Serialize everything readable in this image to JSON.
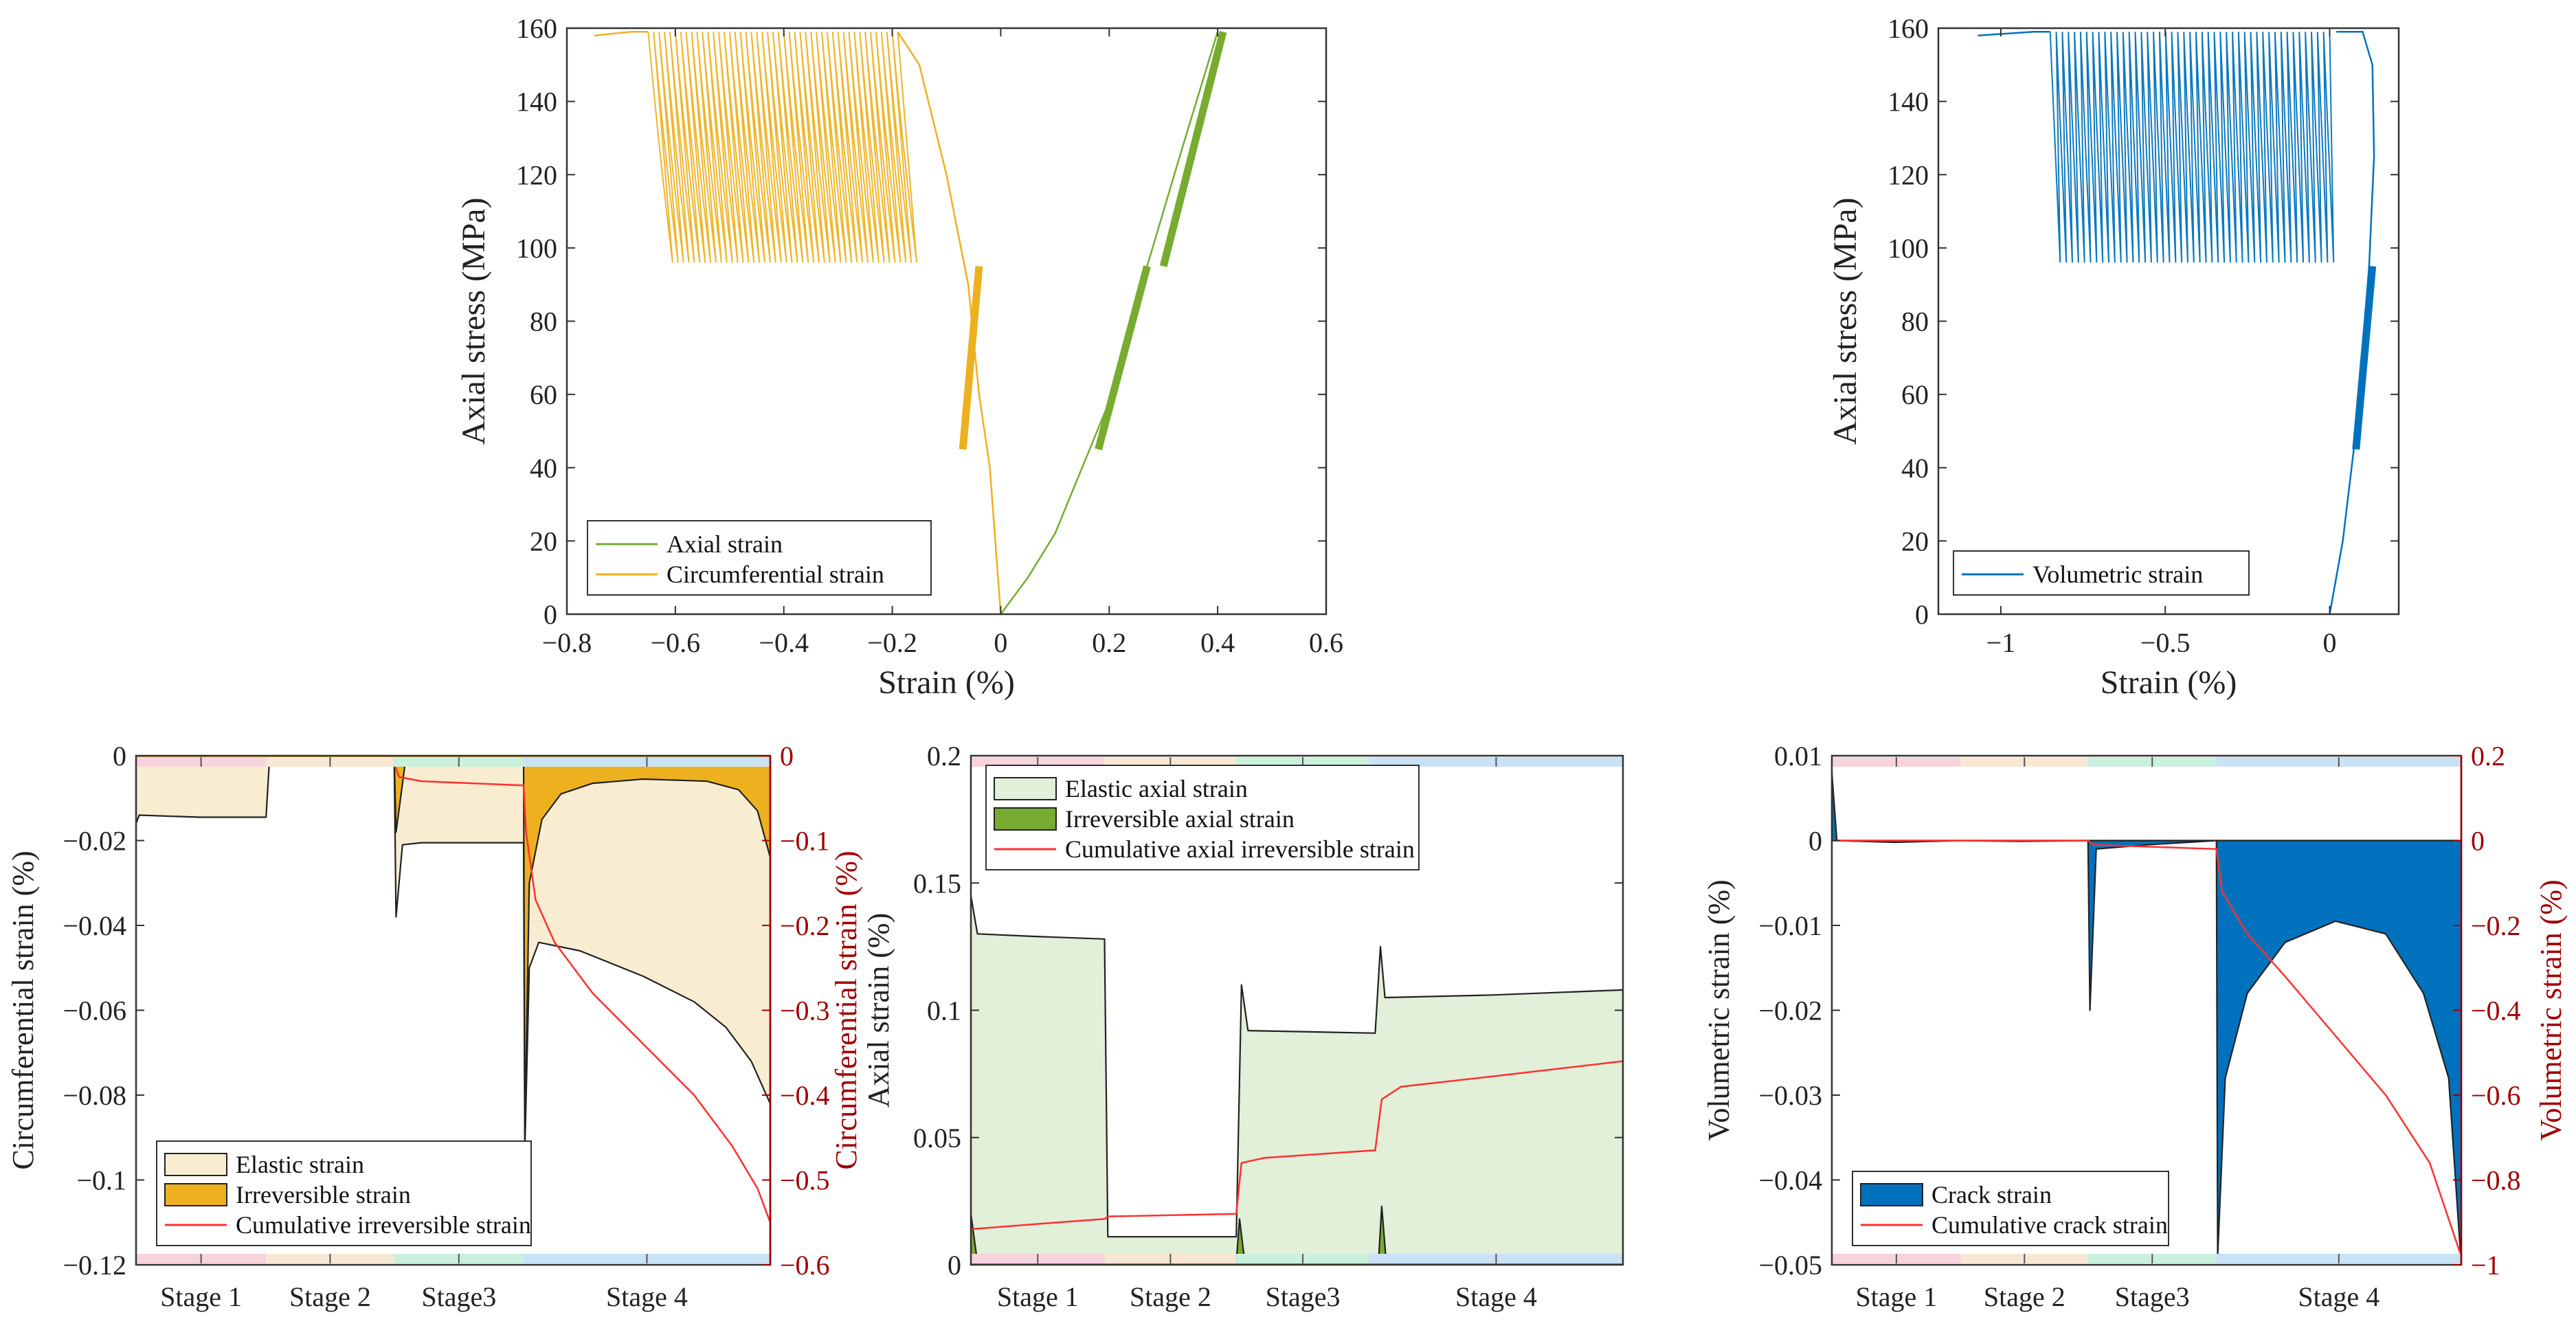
{
  "colors": {
    "axial": "#77ac30",
    "circ": "#edb120",
    "vol": "#0072bd",
    "red": "#ff3030",
    "darkred": "#a00000",
    "elastic_circ": "#f9edd1",
    "elastic_axial": "#e2efd9",
    "stages": [
      "#f8d3dc",
      "#f8e8d3",
      "#c9f1de",
      "#c9e2f6"
    ]
  },
  "stage_labels": [
    "Stage 1",
    "Stage 2",
    "Stage3",
    "Stage 4"
  ],
  "stage_bounds": [
    0,
    0.205,
    0.407,
    0.611,
    1.0
  ],
  "chart_data": [
    {
      "id": "stress-strain",
      "type": "line",
      "xlabel": "Strain (%)",
      "ylabel": "Axial stress (MPa)",
      "xlim": [
        -0.8,
        0.6
      ],
      "ylim": [
        0,
        160
      ],
      "xticks": [
        -0.8,
        -0.6,
        -0.4,
        -0.2,
        0,
        0.2,
        0.4,
        0.6
      ],
      "xticklabels": [
        "−0.8",
        "−0.6",
        "−0.4",
        "−0.2",
        "0",
        "0.2",
        "0.4",
        "0.6"
      ],
      "yticks": [
        0,
        20,
        40,
        60,
        80,
        100,
        120,
        140,
        160
      ],
      "yticklabels": [
        "0",
        "20",
        "40",
        "60",
        "80",
        "100",
        "120",
        "140",
        "160"
      ],
      "legend": "bottom-left",
      "series": [
        {
          "name": "Axial strain",
          "color": "axial",
          "points": [
            [
              0,
              0
            ],
            [
              0.05,
              10
            ],
            [
              0.1,
              22
            ],
            [
              0.15,
              40
            ],
            [
              0.2,
              58
            ],
            [
              0.27,
              95
            ],
            [
              0.33,
              125
            ],
            [
              0.4,
              159
            ]
          ],
          "bands": [
            {
              "x": [
                0.18,
                0.27
              ],
              "y": [
                45,
                95
              ]
            },
            {
              "x": [
                0.3,
                0.41
              ],
              "y": [
                95,
                159
              ]
            }
          ]
        },
        {
          "name": "Circumferential strain",
          "color": "circ",
          "points": [
            [
              0,
              0
            ],
            [
              -0.01,
              20
            ],
            [
              -0.02,
              40
            ],
            [
              -0.04,
              60
            ],
            [
              -0.06,
              90
            ],
            [
              -0.1,
              120
            ],
            [
              -0.15,
              150
            ],
            [
              -0.19,
              159
            ]
          ],
          "bands": [
            {
              "x": [
                -0.07,
                -0.04
              ],
              "y": [
                45,
                95
              ]
            }
          ],
          "cycles": {
            "count": 46,
            "x_start": -0.19,
            "x_end": -0.65,
            "y": [
              96,
              159
            ]
          },
          "tail": [
            [
              -0.65,
              159
            ],
            [
              -0.68,
              159
            ],
            [
              -0.75,
              158
            ]
          ]
        }
      ]
    },
    {
      "id": "volumetric-stress-strain",
      "type": "line",
      "xlabel": "Strain (%)",
      "ylabel": "Axial stress (MPa)",
      "xlim": [
        -1.19,
        0.21
      ],
      "ylim": [
        0,
        160
      ],
      "xticks": [
        -1,
        -0.5,
        0
      ],
      "xticklabels": [
        "−1",
        "−0.5",
        "0"
      ],
      "yticks": [
        0,
        20,
        40,
        60,
        80,
        100,
        120,
        140,
        160
      ],
      "yticklabels": [
        "0",
        "20",
        "40",
        "60",
        "80",
        "100",
        "120",
        "140",
        "160"
      ],
      "legend": "bottom-left",
      "series": [
        {
          "name": "Volumetric strain",
          "color": "vol",
          "points": [
            [
              0,
              0
            ],
            [
              0.04,
              20
            ],
            [
              0.08,
              50
            ],
            [
              0.12,
              95
            ],
            [
              0.135,
              125
            ],
            [
              0.13,
              150
            ],
            [
              0.1,
              159
            ],
            [
              0.02,
              159
            ]
          ],
          "bands": [
            {
              "x": [
                0.08,
                0.13
              ],
              "y": [
                45,
                95
              ]
            }
          ],
          "cycles": {
            "count": 46,
            "x_start": 0.0,
            "x_end": -0.85,
            "y": [
              96,
              159
            ]
          },
          "tail": [
            [
              -0.85,
              159
            ],
            [
              -0.9,
              159
            ],
            [
              -1.07,
              158
            ]
          ]
        }
      ]
    },
    {
      "id": "circumferential-decomposition",
      "type": "area",
      "ylabel": "Circumferential strain (%)",
      "y2label": "Circumferential strain (%)",
      "xlim": [
        0,
        1
      ],
      "ylim": [
        -0.12,
        0
      ],
      "y2lim": [
        -0.6,
        0
      ],
      "yticks": [
        -0.12,
        -0.1,
        -0.08,
        -0.06,
        -0.04,
        -0.02,
        0
      ],
      "yticklabels": [
        "−0.12",
        "−0.1",
        "−0.08",
        "−0.06",
        "−0.04",
        "−0.02",
        "0"
      ],
      "y2ticks": [
        -0.6,
        -0.5,
        -0.4,
        -0.3,
        -0.2,
        -0.1,
        0
      ],
      "y2ticklabels": [
        "−0.6",
        "−0.5",
        "−0.4",
        "−0.3",
        "−0.2",
        "−0.1",
        "0"
      ],
      "legend": "bottom-left",
      "series": [
        {
          "name": "Elastic strain",
          "kind": "patch",
          "fill": "elastic_circ",
          "points": [
            [
              0,
              -0.016
            ],
            [
              0.005,
              -0.014
            ],
            [
              0.1,
              -0.0145
            ],
            [
              0.205,
              -0.0145
            ],
            [
              0.21,
              -0.002
            ],
            [
              0.407,
              -0.0015
            ],
            [
              0.41,
              -0.038
            ],
            [
              0.42,
              -0.021
            ],
            [
              0.45,
              -0.0205
            ],
            [
              0.611,
              -0.0205
            ],
            [
              0.613,
              -0.093
            ],
            [
              0.62,
              -0.05
            ],
            [
              0.635,
              -0.044
            ],
            [
              0.7,
              -0.046
            ],
            [
              0.8,
              -0.052
            ],
            [
              0.88,
              -0.058
            ],
            [
              0.93,
              -0.064
            ],
            [
              0.97,
              -0.072
            ],
            [
              1.0,
              -0.082
            ]
          ]
        },
        {
          "name": "Irreversible strain",
          "kind": "patch",
          "fill": "circ",
          "points": [
            [
              0,
              -0.0015
            ],
            [
              0.01,
              -0.0005
            ],
            [
              0.205,
              -0.0005
            ],
            [
              0.21,
              -0.001
            ],
            [
              0.407,
              -0.0005
            ],
            [
              0.41,
              -0.018
            ],
            [
              0.425,
              -0.001
            ],
            [
              0.611,
              -0.0005
            ],
            [
              0.613,
              -0.09
            ],
            [
              0.62,
              -0.03
            ],
            [
              0.64,
              -0.015
            ],
            [
              0.67,
              -0.009
            ],
            [
              0.72,
              -0.0065
            ],
            [
              0.8,
              -0.0055
            ],
            [
              0.9,
              -0.006
            ],
            [
              0.95,
              -0.008
            ],
            [
              0.98,
              -0.013
            ],
            [
              1.0,
              -0.024
            ]
          ]
        },
        {
          "name": "Cumulative irreversible strain",
          "kind": "line",
          "axis": "right",
          "color": "red",
          "points": [
            [
              0,
              -0.005
            ],
            [
              0.205,
              -0.006
            ],
            [
              0.21,
              -0.009
            ],
            [
              0.407,
              -0.01
            ],
            [
              0.415,
              -0.025
            ],
            [
              0.45,
              -0.03
            ],
            [
              0.611,
              -0.035
            ],
            [
              0.615,
              -0.09
            ],
            [
              0.63,
              -0.17
            ],
            [
              0.66,
              -0.22
            ],
            [
              0.72,
              -0.28
            ],
            [
              0.8,
              -0.34
            ],
            [
              0.88,
              -0.4
            ],
            [
              0.94,
              -0.46
            ],
            [
              0.98,
              -0.51
            ],
            [
              1.0,
              -0.55
            ]
          ]
        }
      ]
    },
    {
      "id": "axial-decomposition",
      "type": "area",
      "ylabel": "Axial strain (%)",
      "xlim": [
        0,
        1
      ],
      "ylim": [
        0,
        0.2
      ],
      "yticks": [
        0,
        0.05,
        0.1,
        0.15,
        0.2
      ],
      "yticklabels": [
        "0",
        "0.05",
        "0.1",
        "0.15",
        "0.2"
      ],
      "legend": "top-left",
      "series": [
        {
          "name": "Elastic axial strain",
          "kind": "patch",
          "fill": "elastic_axial",
          "points": [
            [
              0,
              0.145
            ],
            [
              0.01,
              0.13
            ],
            [
              0.1,
              0.129
            ],
            [
              0.205,
              0.128
            ],
            [
              0.21,
              0.011
            ],
            [
              0.407,
              0.011
            ],
            [
              0.415,
              0.11
            ],
            [
              0.425,
              0.092
            ],
            [
              0.62,
              0.091
            ],
            [
              0.628,
              0.125
            ],
            [
              0.635,
              0.105
            ],
            [
              0.8,
              0.106
            ],
            [
              1.0,
              0.108
            ]
          ]
        },
        {
          "name": "Irreversible axial strain",
          "kind": "patch",
          "fill": "axial",
          "points": [
            [
              0,
              0.02
            ],
            [
              0.01,
              0.001
            ],
            [
              0.205,
              0.001
            ],
            [
              0.21,
              0.002
            ],
            [
              0.407,
              0.001
            ],
            [
              0.412,
              0.018
            ],
            [
              0.42,
              0.001
            ],
            [
              0.625,
              0.001
            ],
            [
              0.63,
              0.023
            ],
            [
              0.637,
              0.001
            ],
            [
              1.0,
              0.001
            ]
          ]
        },
        {
          "name": "Cumulative axial irreversible strain",
          "kind": "line",
          "color": "red",
          "points": [
            [
              0,
              0.014
            ],
            [
              0.1,
              0.016
            ],
            [
              0.205,
              0.018
            ],
            [
              0.21,
              0.019
            ],
            [
              0.407,
              0.02
            ],
            [
              0.415,
              0.04
            ],
            [
              0.45,
              0.042
            ],
            [
              0.62,
              0.045
            ],
            [
              0.63,
              0.065
            ],
            [
              0.66,
              0.07
            ],
            [
              0.8,
              0.074
            ],
            [
              1.0,
              0.08
            ]
          ]
        }
      ]
    },
    {
      "id": "volumetric-decomposition",
      "type": "area",
      "ylabel": "Volumetric strain (%)",
      "y2label": "Volumetric strain (%)",
      "xlim": [
        0,
        1
      ],
      "ylim": [
        -0.05,
        0.01
      ],
      "y2lim": [
        -1,
        0.2
      ],
      "yticks": [
        -0.05,
        -0.04,
        -0.03,
        -0.02,
        -0.01,
        0,
        0.01
      ],
      "yticklabels": [
        "−0.05",
        "−0.04",
        "−0.03",
        "−0.02",
        "−0.01",
        "0",
        "0.01"
      ],
      "y2ticks": [
        -1,
        -0.8,
        -0.6,
        -0.4,
        -0.2,
        0,
        0.2
      ],
      "y2ticklabels": [
        "−1",
        "−0.8",
        "−0.6",
        "−0.4",
        "−0.2",
        "0",
        "0.2"
      ],
      "legend": "bottom-left",
      "series": [
        {
          "name": "Crack strain",
          "kind": "patch",
          "fill": "vol",
          "points": [
            [
              0,
              0.008
            ],
            [
              0.008,
              0
            ],
            [
              0.1,
              -0.0002
            ],
            [
              0.205,
              0
            ],
            [
              0.3,
              -0.0001
            ],
            [
              0.407,
              0
            ],
            [
              0.41,
              -0.02
            ],
            [
              0.42,
              -0.001
            ],
            [
              0.5,
              -0.0005
            ],
            [
              0.611,
              0
            ],
            [
              0.613,
              -0.049
            ],
            [
              0.625,
              -0.028
            ],
            [
              0.66,
              -0.018
            ],
            [
              0.72,
              -0.012
            ],
            [
              0.8,
              -0.0095
            ],
            [
              0.88,
              -0.011
            ],
            [
              0.94,
              -0.018
            ],
            [
              0.98,
              -0.028
            ],
            [
              1.0,
              -0.05
            ]
          ]
        },
        {
          "name": "Cumulative crack strain",
          "kind": "line",
          "axis": "right",
          "color": "red",
          "points": [
            [
              0,
              0
            ],
            [
              0.205,
              0
            ],
            [
              0.407,
              0
            ],
            [
              0.415,
              -0.01
            ],
            [
              0.611,
              -0.02
            ],
            [
              0.62,
              -0.12
            ],
            [
              0.66,
              -0.22
            ],
            [
              0.72,
              -0.32
            ],
            [
              0.8,
              -0.46
            ],
            [
              0.88,
              -0.6
            ],
            [
              0.95,
              -0.76
            ],
            [
              1.0,
              -0.98
            ]
          ]
        }
      ]
    }
  ]
}
